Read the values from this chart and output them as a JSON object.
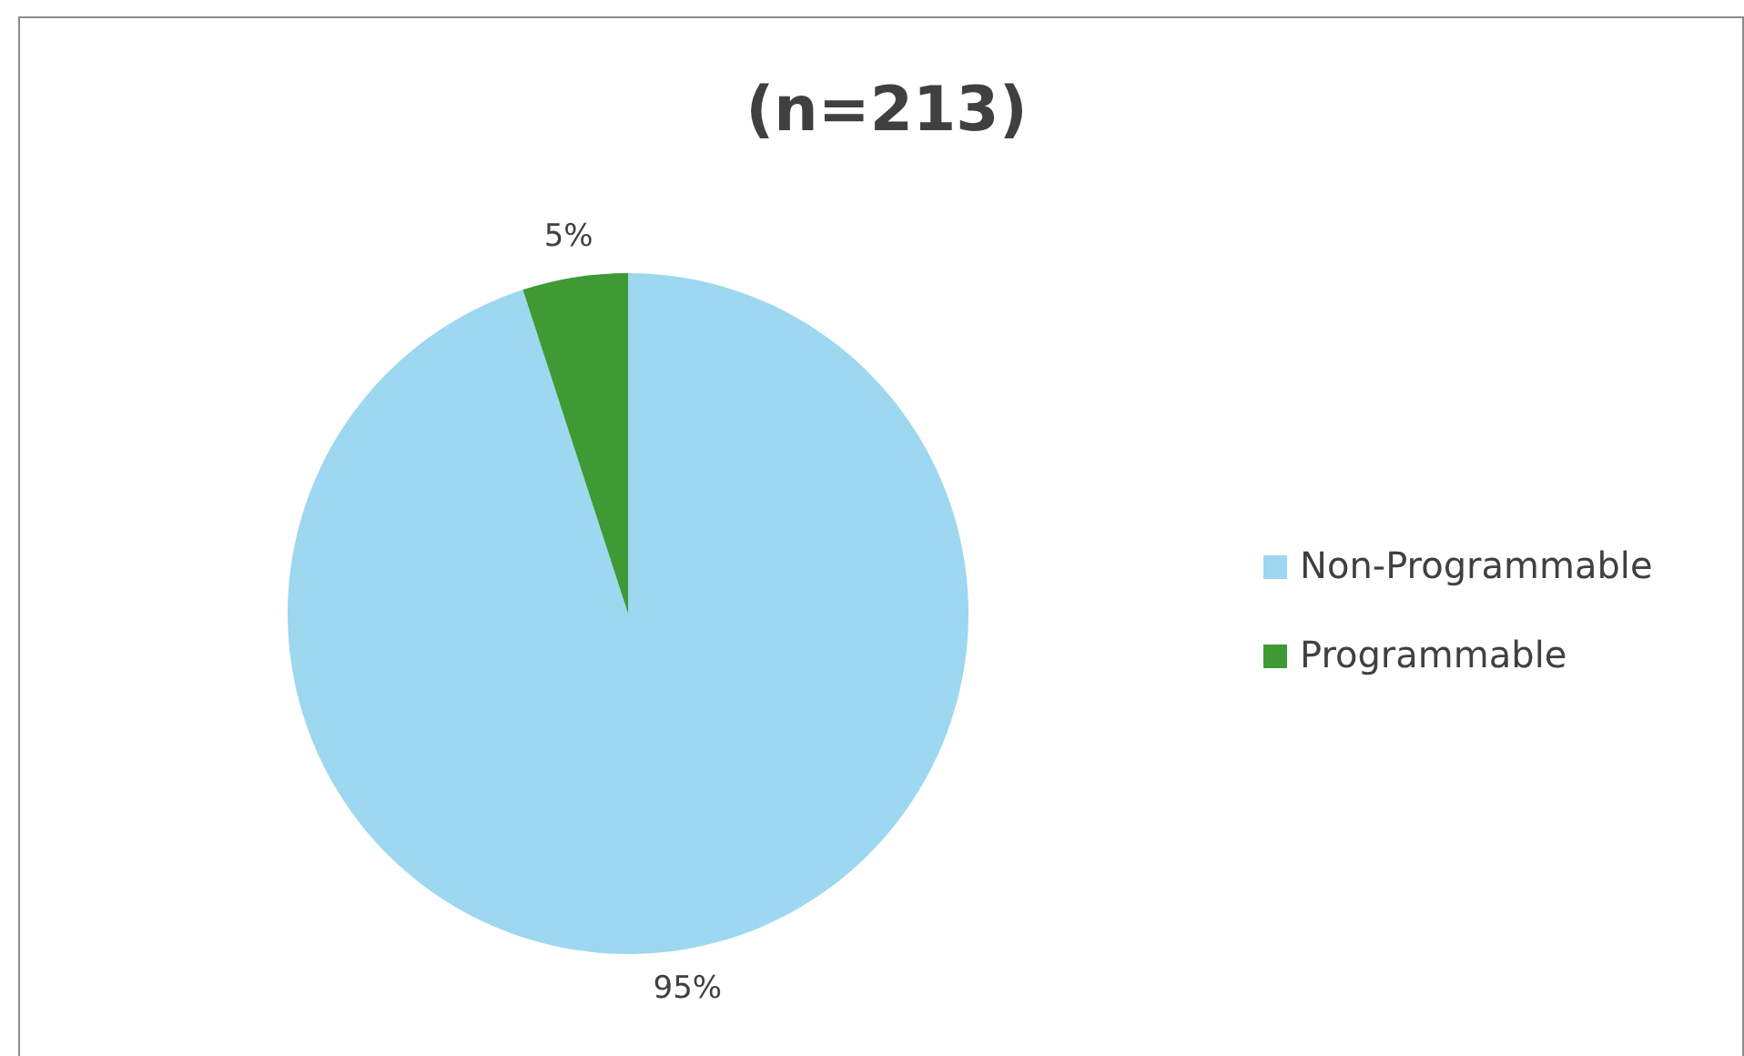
{
  "chart_data": {
    "type": "pie",
    "title": "(n=213)",
    "categories": [
      "Non-Programmable",
      "Programmable"
    ],
    "values": [
      95,
      5
    ],
    "colors": [
      "#9dd7f0",
      "#3d9a35"
    ],
    "value_labels": [
      "95%",
      "5%"
    ],
    "legend": "right"
  }
}
